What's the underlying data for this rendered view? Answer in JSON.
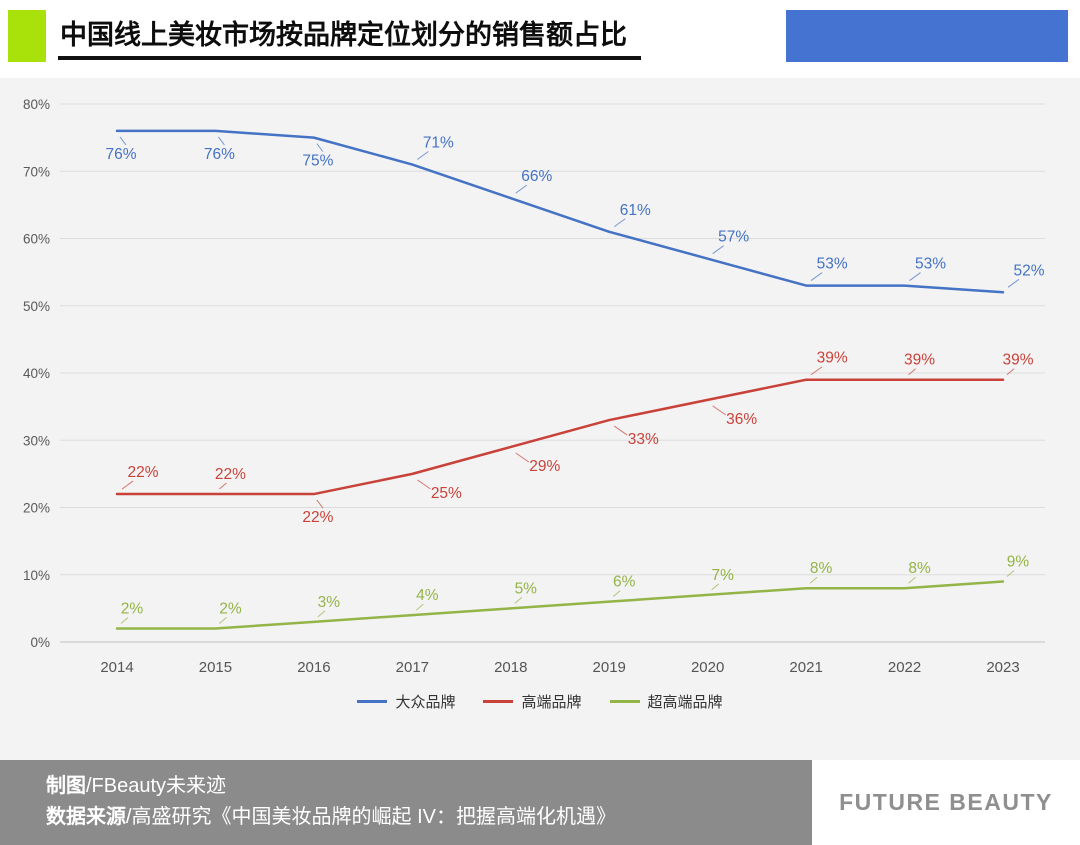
{
  "header": {
    "title": "中国线上美妆市场按品牌定位划分的销售额占比",
    "accent_green_color": "#a8e20a",
    "accent_blue_color": "#4573d1"
  },
  "chart_data": {
    "type": "line",
    "categories": [
      "2014",
      "2015",
      "2016",
      "2017",
      "2018",
      "2019",
      "2020",
      "2021",
      "2022",
      "2023"
    ],
    "series": [
      {
        "name": "大众品牌",
        "color": "#4472c4",
        "values": [
          76,
          76,
          75,
          71,
          66,
          61,
          57,
          53,
          53,
          52
        ]
      },
      {
        "name": "高端品牌",
        "color": "#c9423a",
        "values": [
          22,
          22,
          22,
          25,
          29,
          33,
          36,
          39,
          39,
          39
        ]
      },
      {
        "name": "超高端品牌",
        "color": "#93b447",
        "values": [
          2,
          2,
          3,
          4,
          5,
          6,
          7,
          8,
          8,
          9
        ]
      }
    ],
    "title": "",
    "xlabel": "",
    "ylabel": "",
    "ylim": [
      0,
      80
    ],
    "ytick_step": 10,
    "value_suffix": "%",
    "grid": true,
    "legend_position": "bottom"
  },
  "footer": {
    "credit_label": "制图",
    "credit_value": "/FBeauty未来迹",
    "source_label": "数据来源",
    "source_value": "/高盛研究《中国美妆品牌的崛起 IV：把握高端化机遇》",
    "brand": "FUTURE BEAUTY"
  }
}
